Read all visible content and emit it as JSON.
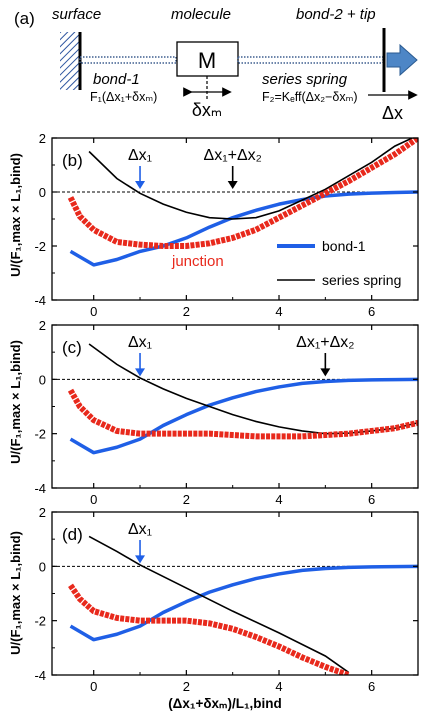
{
  "schematic": {
    "panel_label": "(a)",
    "surface_label": "surface",
    "molecule_label": "molecule",
    "tip_label": "bond-2 + tip",
    "molecule_box_label": "M",
    "bond1_label": "bond-1",
    "bond1_formula": "F₁(Δx₁+δxₘ)",
    "spring_label": "series spring",
    "spring_formula": "F₂=Kₑff(Δx₂−δxₘ)",
    "displacement_label": "δxₘ",
    "pull_label": "Δx"
  },
  "shared_axes": {
    "xlabel": "(Δx₁+δxₘ)/L₁,bind",
    "ylabel": "U/(F₁,max × L₁,bind)",
    "xlim": [
      -0.9,
      7.0
    ],
    "ylim": [
      -4,
      2
    ],
    "xticks": [
      "0",
      "2",
      "4",
      "6"
    ],
    "yticks": [
      "-4",
      "-2",
      "0",
      "2"
    ]
  },
  "colors": {
    "bond1": "#1f5fe6",
    "spring": "#000000",
    "junction": "#e8291c",
    "box_arrow": "#4d86c6"
  },
  "legend": {
    "bond1": "bond-1",
    "spring": "series spring",
    "junction": "junction"
  },
  "chart_data": [
    {
      "panel": "(b)",
      "type": "line",
      "markers": [
        {
          "label": "Δx₁",
          "x": 1,
          "color": "#1f5fe6"
        },
        {
          "label": "Δx₁+Δx₂",
          "x": 3,
          "color": "#000000"
        }
      ],
      "series": [
        {
          "name": "bond-1",
          "x": [
            -0.5,
            0,
            0.5,
            1,
            1.5,
            2,
            2.5,
            3,
            3.5,
            4,
            4.5,
            5,
            5.5,
            6,
            6.5,
            7
          ],
          "values": [
            -2.2,
            -2.7,
            -2.5,
            -2.2,
            -2.0,
            -1.7,
            -1.3,
            -0.95,
            -0.68,
            -0.45,
            -0.28,
            -0.15,
            -0.08,
            -0.04,
            -0.02,
            0
          ]
        },
        {
          "name": "series spring",
          "x": [
            -0.1,
            0.5,
            1,
            1.5,
            2,
            2.5,
            3,
            3.5,
            4,
            4.5,
            5,
            5.5,
            6,
            6.5,
            7
          ],
          "values": [
            1.5,
            0.5,
            -0.05,
            -0.45,
            -0.75,
            -0.95,
            -1.0,
            -0.95,
            -0.7,
            -0.3,
            0.1,
            0.6,
            1.1,
            1.7,
            2.1
          ]
        },
        {
          "name": "junction",
          "x": [
            -0.5,
            -0.3,
            0,
            0.5,
            1,
            1.5,
            2,
            2.5,
            3,
            3.5,
            4,
            4.5,
            5,
            5.5,
            6,
            6.5,
            7
          ],
          "values": [
            -0.2,
            -0.9,
            -1.4,
            -1.85,
            -1.95,
            -2.0,
            -2.0,
            -1.9,
            -1.7,
            -1.4,
            -0.95,
            -0.5,
            -0.05,
            0.4,
            0.9,
            1.4,
            2.0
          ]
        }
      ]
    },
    {
      "panel": "(c)",
      "type": "line",
      "markers": [
        {
          "label": "Δx₁",
          "x": 1,
          "color": "#1f5fe6"
        },
        {
          "label": "Δx₁+Δx₂",
          "x": 5,
          "color": "#000000"
        }
      ],
      "series": [
        {
          "name": "bond-1",
          "x": [
            -0.5,
            0,
            0.5,
            1,
            1.5,
            2,
            2.5,
            3,
            3.5,
            4,
            4.5,
            5,
            5.5,
            6,
            6.5,
            7
          ],
          "values": [
            -2.2,
            -2.7,
            -2.5,
            -2.2,
            -1.7,
            -1.3,
            -0.95,
            -0.68,
            -0.45,
            -0.28,
            -0.15,
            -0.08,
            -0.04,
            -0.02,
            -0.01,
            0
          ]
        },
        {
          "name": "series spring",
          "x": [
            -0.1,
            0.5,
            1,
            1.5,
            2,
            2.5,
            3,
            3.5,
            4,
            4.5,
            5,
            5.5,
            6,
            6.5,
            7
          ],
          "values": [
            1.3,
            0.55,
            0.05,
            -0.35,
            -0.7,
            -1.0,
            -1.3,
            -1.55,
            -1.75,
            -1.9,
            -2.0,
            -1.98,
            -1.9,
            -1.8,
            -1.6
          ]
        },
        {
          "name": "junction",
          "x": [
            -0.5,
            -0.3,
            0,
            0.5,
            1,
            1.5,
            2,
            2.5,
            3,
            3.5,
            4,
            4.5,
            5,
            5.5,
            6,
            6.5,
            7
          ],
          "values": [
            -0.4,
            -1.0,
            -1.5,
            -1.9,
            -2.0,
            -2.0,
            -2.0,
            -2.0,
            -2.05,
            -2.1,
            -2.1,
            -2.1,
            -2.05,
            -2.0,
            -1.9,
            -1.8,
            -1.6
          ]
        }
      ]
    },
    {
      "panel": "(d)",
      "type": "line",
      "markers": [
        {
          "label": "Δx₁",
          "x": 1,
          "color": "#1f5fe6"
        }
      ],
      "series": [
        {
          "name": "bond-1",
          "x": [
            -0.5,
            0,
            0.5,
            1,
            1.5,
            2,
            2.5,
            3,
            3.5,
            4,
            4.5,
            5,
            5.5,
            6,
            6.5,
            7
          ],
          "values": [
            -2.2,
            -2.7,
            -2.5,
            -2.2,
            -1.7,
            -1.3,
            -0.95,
            -0.68,
            -0.45,
            -0.28,
            -0.15,
            -0.08,
            -0.04,
            -0.02,
            -0.01,
            0
          ]
        },
        {
          "name": "series spring",
          "x": [
            -0.1,
            0.5,
            1,
            2,
            3,
            4,
            5,
            5.5
          ],
          "values": [
            1.1,
            0.55,
            0.05,
            -0.8,
            -1.65,
            -2.45,
            -3.3,
            -3.9
          ]
        },
        {
          "name": "junction",
          "x": [
            -0.5,
            -0.3,
            0,
            0.5,
            1,
            1.5,
            2,
            2.5,
            3,
            3.5,
            4,
            4.5,
            5,
            5.5
          ],
          "values": [
            -0.7,
            -1.2,
            -1.65,
            -1.9,
            -2.0,
            -2.0,
            -2.0,
            -2.1,
            -2.3,
            -2.6,
            -2.95,
            -3.35,
            -3.7,
            -4.0
          ]
        }
      ]
    }
  ]
}
